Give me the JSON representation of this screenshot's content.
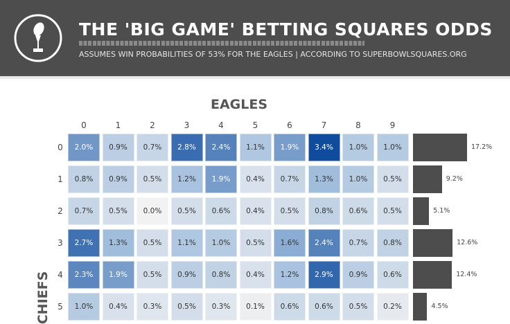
{
  "header": {
    "title": "THE 'BIG GAME' BETTING SQUARES ODDS",
    "subtitle": "ASSUMES WIN PROBABILITIES OF 53% FOR THE EAGLES | ACCORDING TO SUPERBOWLSQUARES.ORG",
    "logo_icon": "trophy-icon"
  },
  "chart_data": {
    "type": "heatmap",
    "x_axis_title": "EAGLES",
    "y_axis_title": "CHIEFS",
    "columns": [
      "0",
      "1",
      "2",
      "3",
      "4",
      "5",
      "6",
      "7",
      "8",
      "9"
    ],
    "rows": [
      {
        "label": "0",
        "values": [
          2.0,
          0.9,
          0.7,
          2.8,
          2.4,
          1.1,
          1.9,
          3.4,
          1.0,
          1.0
        ],
        "cells": [
          "2.0%",
          "0.9%",
          "0.7%",
          "2.8%",
          "2.4%",
          "1.1%",
          "1.9%",
          "3.4%",
          "1.0%",
          "1.0%"
        ],
        "total": 17.2,
        "total_label": "17.2%"
      },
      {
        "label": "1",
        "values": [
          0.8,
          0.9,
          0.5,
          1.2,
          1.9,
          0.4,
          0.7,
          1.3,
          1.0,
          0.5
        ],
        "cells": [
          "0.8%",
          "0.9%",
          "0.5%",
          "1.2%",
          "1.9%",
          "0.4%",
          "0.7%",
          "1.3%",
          "1.0%",
          "0.5%"
        ],
        "total": 9.2,
        "total_label": "9.2%"
      },
      {
        "label": "2",
        "values": [
          0.7,
          0.5,
          0.0,
          0.5,
          0.6,
          0.4,
          0.5,
          0.8,
          0.6,
          0.5
        ],
        "cells": [
          "0.7%",
          "0.5%",
          "0.0%",
          "0.5%",
          "0.6%",
          "0.4%",
          "0.5%",
          "0.8%",
          "0.6%",
          "0.5%"
        ],
        "total": 5.1,
        "total_label": "5.1%"
      },
      {
        "label": "3",
        "values": [
          2.7,
          1.3,
          0.5,
          1.1,
          1.0,
          0.5,
          1.6,
          2.4,
          0.7,
          0.8
        ],
        "cells": [
          "2.7%",
          "1.3%",
          "0.5%",
          "1.1%",
          "1.0%",
          "0.5%",
          "1.6%",
          "2.4%",
          "0.7%",
          "0.8%"
        ],
        "total": 12.6,
        "total_label": "12.6%"
      },
      {
        "label": "4",
        "values": [
          2.3,
          1.9,
          0.5,
          0.9,
          0.8,
          0.4,
          1.2,
          2.9,
          0.9,
          0.6
        ],
        "cells": [
          "2.3%",
          "1.9%",
          "0.5%",
          "0.9%",
          "0.8%",
          "0.4%",
          "1.2%",
          "2.9%",
          "0.9%",
          "0.6%"
        ],
        "total": 12.4,
        "total_label": "12.4%"
      },
      {
        "label": "5",
        "values": [
          1.0,
          0.4,
          0.3,
          0.5,
          0.3,
          0.1,
          0.6,
          0.6,
          0.5,
          0.2
        ],
        "cells": [
          "1.0%",
          "0.4%",
          "0.3%",
          "0.5%",
          "0.3%",
          "0.1%",
          "0.6%",
          "0.6%",
          "0.5%",
          "0.2%"
        ],
        "total": 4.5,
        "total_label": "4.5%"
      }
    ],
    "colors": {
      "low": "#f2f2f2",
      "mid": "#a9c3df",
      "high": "#0f4c9e",
      "bar": "#4d4d4d"
    },
    "value_range": [
      0,
      3.4
    ],
    "total_range": [
      0,
      17.2
    ]
  }
}
